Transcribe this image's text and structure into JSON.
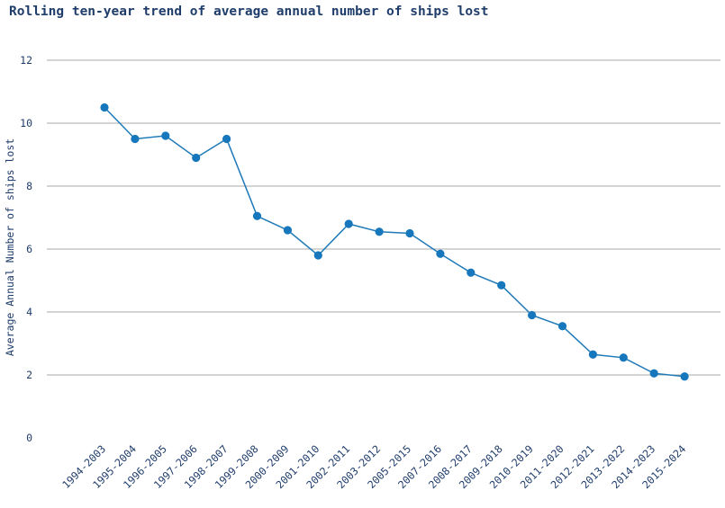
{
  "chart_data": {
    "type": "line",
    "title": "Rolling ten-year trend of average annual number of ships lost",
    "xlabel": "",
    "ylabel": "Average Annual Number of ships lost",
    "ylim": [
      0,
      12
    ],
    "yticks": [
      0,
      2,
      4,
      6,
      8,
      10,
      12
    ],
    "grid": true,
    "legend": "none",
    "colors": {
      "line": "#1f7ab8",
      "marker": "#1677bd",
      "grid": "#a8a8a8",
      "text": "#1f3d6b"
    },
    "categories": [
      "1994-2003",
      "1995-2004",
      "1996-2005",
      "1997-2006",
      "1998-2007",
      "1999-2008",
      "2000-2009",
      "2001-2010",
      "2002-2011",
      "2003-2012",
      "2005-2015",
      "2007-2016",
      "2008-2017",
      "2009-2018",
      "2010-2019",
      "2011-2020",
      "2012-2021",
      "2013-2022",
      "2014-2023",
      "2015-2024"
    ],
    "series": [
      {
        "values": [
          10.5,
          9.5,
          9.6,
          8.9,
          9.5,
          7.05,
          6.6,
          5.8,
          6.8,
          6.55,
          6.5,
          5.85,
          5.25,
          4.85,
          3.9,
          3.55,
          2.65,
          2.55,
          2.05,
          1.95
        ]
      }
    ]
  }
}
